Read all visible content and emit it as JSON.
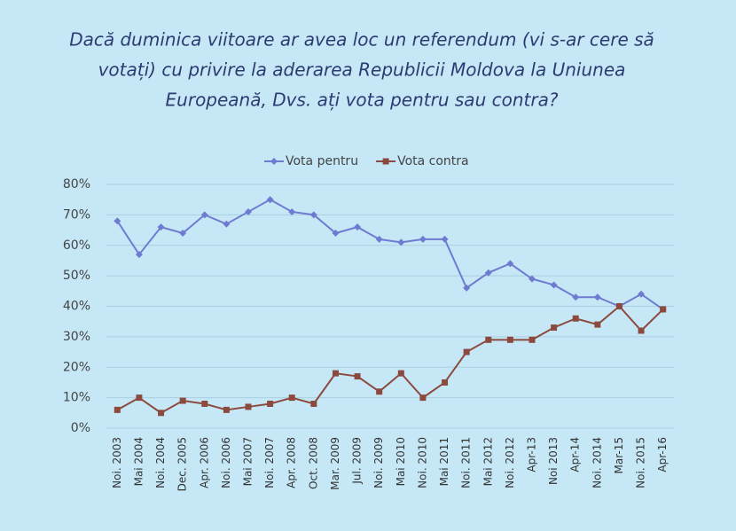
{
  "chart_data": {
    "type": "line",
    "title_lines": [
      "Dacă duminica viitoare ar avea loc un referendum (vi s-ar cere să",
      "votați) cu privire la aderarea Republicii Moldova la Uniunea",
      "Europeană, Dvs. ați vota pentru sau contra?"
    ],
    "categories": [
      "Noi. 2003",
      "Mai 2004",
      "Noi. 2004",
      "Dec. 2005",
      "Apr. 2006",
      "Noi. 2006",
      "Mai 2007",
      "Noi. 2007",
      "Apr. 2008",
      "Oct. 2008",
      "Mar. 2009",
      "Jul. 2009",
      "Noi. 2009",
      "Mai 2010",
      "Noi. 2010",
      "Mai 2011",
      "Noi. 2011",
      "Mai 2012",
      "Noi. 2012",
      "Apr-13",
      "Noi 2013",
      "Apr-14",
      "Noi. 2014",
      "Mar-15",
      "Noi. 2015",
      "Apr-16"
    ],
    "series": [
      {
        "name": "Vota pentru",
        "color": "#6f7bd0",
        "marker": "diamond",
        "values": [
          68,
          57,
          66,
          64,
          70,
          67,
          71,
          75,
          71,
          70,
          64,
          66,
          62,
          61,
          62,
          62,
          46,
          51,
          54,
          49,
          47,
          43,
          43,
          40,
          44,
          39
        ]
      },
      {
        "name": "Vota contra",
        "color": "#8c4a3e",
        "marker": "square",
        "values": [
          6,
          10,
          5,
          9,
          8,
          6,
          7,
          8,
          10,
          8,
          18,
          17,
          12,
          18,
          10,
          15,
          25,
          29,
          29,
          29,
          33,
          36,
          34,
          40,
          32,
          39
        ]
      }
    ],
    "ylim": [
      0,
      80
    ],
    "yticks": [
      {
        "value": 0,
        "label": "0%"
      },
      {
        "value": 10,
        "label": "10%"
      },
      {
        "value": 20,
        "label": "20%"
      },
      {
        "value": 30,
        "label": "30%"
      },
      {
        "value": 40,
        "label": "40%"
      },
      {
        "value": 50,
        "label": "50%"
      },
      {
        "value": 60,
        "label": "60%"
      },
      {
        "value": 70,
        "label": "70%"
      },
      {
        "value": 80,
        "label": "80%"
      }
    ],
    "grid": true,
    "legend": "top"
  }
}
